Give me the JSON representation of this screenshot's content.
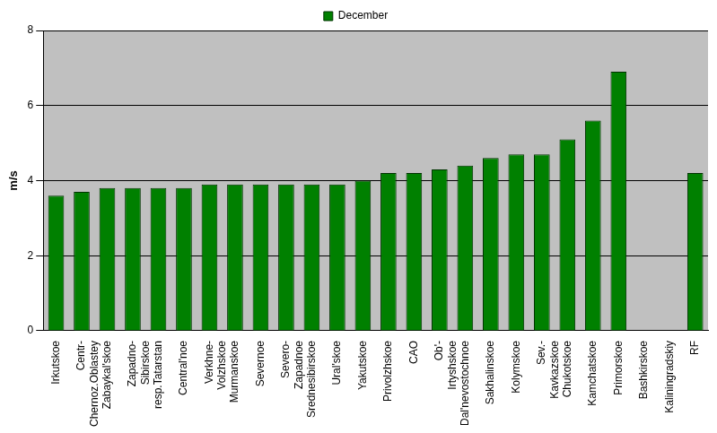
{
  "chart_data": {
    "type": "bar",
    "y_label": "m/s",
    "categories": [
      "Irkutskoe",
      "Centr-Chernoz.Oblastey",
      "Zabaykal'skoe",
      "Zapadno-Sibirskoe",
      "resp.Tatarstan",
      "Central'noe",
      "Verkhne-Volzhskoe",
      "Murmanskoe",
      "Severnoe",
      "Severo-Zapadnoe",
      "Srednesibirskoe",
      "Ural'skoe",
      "Yakutskoe",
      "Privolzhskoe",
      "CAO",
      "Ob'-Irtyshskoe",
      "Dal'nevostochnoe",
      "Sakhalinskoe",
      "Kolymskoe",
      "Sev.-Kavkazskoe",
      "Chukotskoe",
      "Kamchatskoe",
      "Primorskoe",
      "Bashkirskoe",
      "Kaliningradskiy",
      "RF"
    ],
    "series": [
      {
        "name": "December",
        "color": "#008000",
        "values": [
          3.6,
          3.7,
          3.8,
          3.8,
          3.8,
          3.8,
          3.9,
          3.9,
          3.9,
          3.9,
          3.9,
          3.9,
          4.0,
          4.2,
          4.2,
          4.3,
          4.4,
          4.6,
          4.7,
          4.7,
          5.1,
          5.6,
          6.9,
          null,
          null,
          4.2
        ]
      }
    ],
    "ylim": [
      0,
      8
    ],
    "yticks": [
      0,
      2,
      4,
      6,
      8
    ],
    "grid": true,
    "legend": "top"
  }
}
